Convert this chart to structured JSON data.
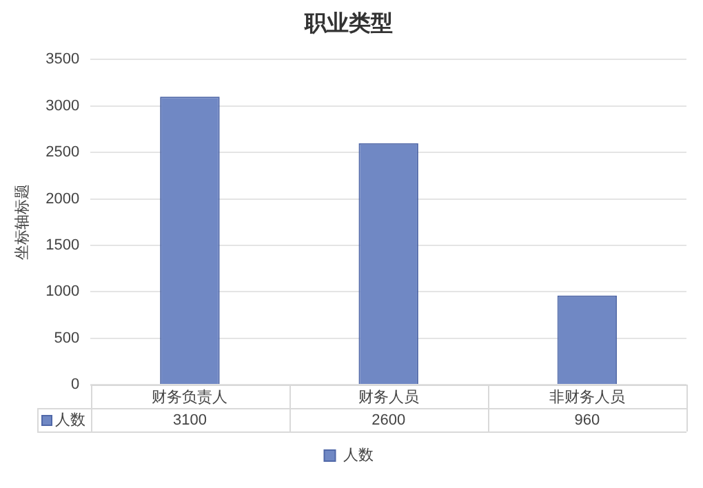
{
  "chart_data": {
    "type": "bar",
    "title": "职业类型",
    "ylabel": "坐标轴标题",
    "categories": [
      "财务负责人",
      "财务人员",
      "非财务人员"
    ],
    "series": [
      {
        "name": "人数",
        "color": "#7088c4",
        "values": [
          3100,
          2600,
          960
        ]
      }
    ],
    "ylim": [
      0,
      3500
    ],
    "yticks": [
      0,
      500,
      1000,
      1500,
      2000,
      2500,
      3000,
      3500
    ],
    "grid": "y",
    "legend": "bottom",
    "data_labels": true
  }
}
